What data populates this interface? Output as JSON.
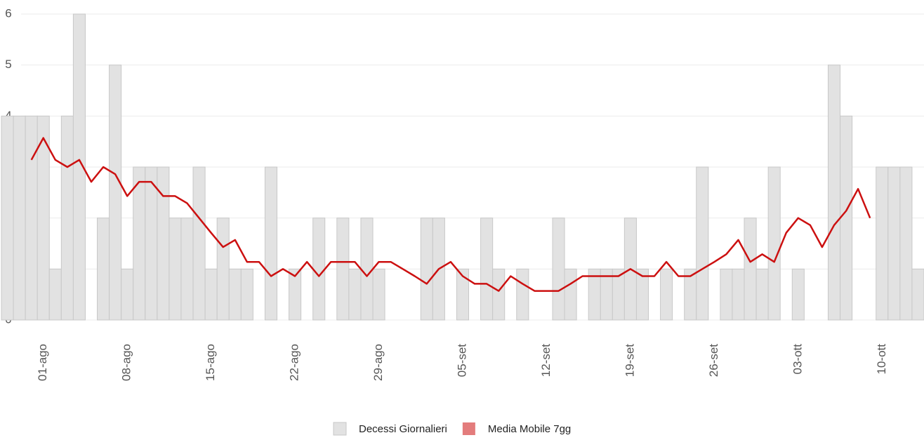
{
  "chart_data": {
    "type": "bar",
    "categories": [
      null,
      null,
      null,
      "01-ago",
      null,
      null,
      null,
      null,
      null,
      null,
      "08-ago",
      null,
      null,
      null,
      null,
      null,
      null,
      "15-ago",
      null,
      null,
      null,
      null,
      null,
      null,
      "22-ago",
      null,
      null,
      null,
      null,
      null,
      null,
      "29-ago",
      null,
      null,
      null,
      null,
      null,
      null,
      "05-set",
      null,
      null,
      null,
      null,
      null,
      null,
      "12-set",
      null,
      null,
      null,
      null,
      null,
      null,
      "19-set",
      null,
      null,
      null,
      null,
      null,
      null,
      "26-set",
      null,
      null,
      null,
      null,
      null,
      null,
      "03-ott",
      null,
      null,
      null,
      null,
      null,
      null,
      "10-ott",
      null,
      null,
      null
    ],
    "series": [
      {
        "name": "Decessi Giornalieri",
        "color": "#e2e2e2",
        "type": "bar",
        "values": [
          4,
          4,
          4,
          4,
          1,
          4,
          6,
          0,
          2,
          5,
          1,
          3,
          3,
          3,
          2,
          2,
          3,
          1,
          2,
          1,
          1,
          0,
          3,
          0,
          1,
          0,
          2,
          0,
          2,
          1,
          2,
          1,
          0,
          0,
          0,
          2,
          2,
          0,
          1,
          0,
          2,
          1,
          0,
          1,
          0,
          0,
          2,
          1,
          0,
          1,
          1,
          1,
          2,
          1,
          0,
          1,
          0,
          1,
          3,
          0,
          1,
          1,
          2,
          1,
          3,
          0,
          1,
          0,
          0,
          5,
          4,
          0,
          0,
          3,
          3,
          3,
          1
        ]
      },
      {
        "name": "Media Mobile 7gg",
        "color": "#cc1010",
        "type": "line",
        "values": [
          null,
          null,
          3.14,
          3.57,
          3.14,
          3.0,
          3.14,
          2.71,
          3.0,
          2.86,
          2.43,
          2.71,
          2.71,
          2.43,
          2.43,
          2.29,
          2.0,
          1.71,
          1.43,
          1.57,
          1.14,
          1.14,
          0.86,
          1.0,
          0.86,
          1.14,
          0.86,
          1.14,
          1.14,
          1.14,
          0.86,
          1.14,
          1.14,
          1.0,
          0.86,
          0.71,
          1.0,
          1.14,
          0.86,
          0.71,
          0.71,
          0.57,
          0.86,
          0.71,
          0.57,
          0.57,
          0.57,
          0.71,
          0.86,
          0.86,
          0.86,
          0.86,
          1.0,
          0.86,
          0.86,
          1.14,
          0.86,
          0.86,
          1.0,
          1.14,
          1.29,
          1.57,
          1.14,
          1.29,
          1.14,
          1.71,
          2.0,
          1.86,
          1.43,
          1.86,
          2.14,
          2.57,
          2.0,
          null,
          null,
          null,
          null
        ]
      }
    ],
    "ylim": [
      0,
      6
    ],
    "yticks": [
      0,
      1,
      2,
      3,
      4,
      5,
      6
    ],
    "grid": true
  }
}
